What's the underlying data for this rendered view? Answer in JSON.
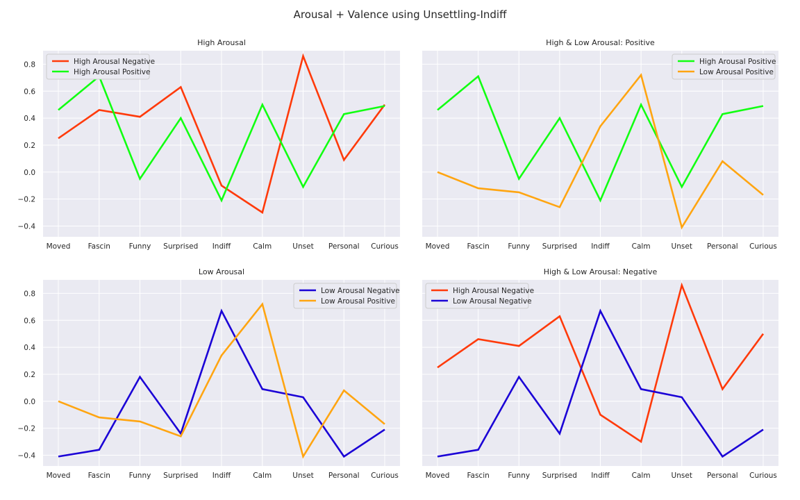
{
  "figure": {
    "suptitle": "Arousal + Valence using Unsettling-Indiff"
  },
  "colors": {
    "high_arousal_negative": "#ff3a0a",
    "high_arousal_positive": "#11ff11",
    "low_arousal_negative": "#1a00d6",
    "low_arousal_positive": "#ffa511",
    "plot_background": "#eaeaf2",
    "grid": "#ffffff"
  },
  "chart_data": [
    {
      "type": "line",
      "title": "High Arousal",
      "categories": [
        "Moved",
        "Fascin",
        "Funny",
        "Surprised",
        "Indiff",
        "Calm",
        "Unset",
        "Personal",
        "Curious"
      ],
      "ylim": [
        -0.48,
        0.9
      ],
      "yticks": [
        "0.8",
        "0.6",
        "0.4",
        "0.2",
        "0.0",
        "−0.2",
        "−0.4"
      ],
      "ytick_values": [
        0.8,
        0.6,
        0.4,
        0.2,
        0.0,
        -0.2,
        -0.4
      ],
      "show_yticks": true,
      "grid": true,
      "legend": "upper-left",
      "series": [
        {
          "name": "High Arousal Negative",
          "color_key": "high_arousal_negative",
          "values": [
            0.25,
            0.46,
            0.41,
            0.63,
            -0.1,
            -0.3,
            0.86,
            0.09,
            0.5
          ]
        },
        {
          "name": "High Arousal Positive",
          "color_key": "high_arousal_positive",
          "values": [
            0.46,
            0.71,
            -0.05,
            0.4,
            -0.21,
            0.5,
            -0.11,
            0.43,
            0.49
          ]
        }
      ]
    },
    {
      "type": "line",
      "title": "High & Low Arousal: Positive",
      "categories": [
        "Moved",
        "Fascin",
        "Funny",
        "Surprised",
        "Indiff",
        "Calm",
        "Unset",
        "Personal",
        "Curious"
      ],
      "ylim": [
        -0.48,
        0.9
      ],
      "yticks": [],
      "ytick_values": [
        0.8,
        0.6,
        0.4,
        0.2,
        0.0,
        -0.2,
        -0.4
      ],
      "show_yticks": false,
      "grid": true,
      "legend": "upper-right",
      "series": [
        {
          "name": "High Arousal Positive",
          "color_key": "high_arousal_positive",
          "values": [
            0.46,
            0.71,
            -0.05,
            0.4,
            -0.21,
            0.5,
            -0.11,
            0.43,
            0.49
          ]
        },
        {
          "name": "Low Arousal Positive",
          "color_key": "low_arousal_positive",
          "values": [
            0.0,
            -0.12,
            -0.15,
            -0.26,
            0.34,
            0.72,
            -0.41,
            0.08,
            -0.17
          ]
        }
      ]
    },
    {
      "type": "line",
      "title": "Low Arousal",
      "categories": [
        "Moved",
        "Fascin",
        "Funny",
        "Surprised",
        "Indiff",
        "Calm",
        "Unset",
        "Personal",
        "Curious"
      ],
      "ylim": [
        -0.48,
        0.9
      ],
      "yticks": [
        "0.8",
        "0.6",
        "0.4",
        "0.2",
        "0.0",
        "−0.2",
        "−0.4"
      ],
      "ytick_values": [
        0.8,
        0.6,
        0.4,
        0.2,
        0.0,
        -0.2,
        -0.4
      ],
      "show_yticks": true,
      "grid": true,
      "legend": "upper-right",
      "series": [
        {
          "name": "Low Arousal Negative",
          "color_key": "low_arousal_negative",
          "values": [
            -0.41,
            -0.36,
            0.18,
            -0.24,
            0.67,
            0.09,
            0.03,
            -0.41,
            -0.21
          ]
        },
        {
          "name": "Low Arousal Positive",
          "color_key": "low_arousal_positive",
          "values": [
            0.0,
            -0.12,
            -0.15,
            -0.26,
            0.34,
            0.72,
            -0.41,
            0.08,
            -0.17
          ]
        }
      ]
    },
    {
      "type": "line",
      "title": "High & Low Arousal: Negative",
      "categories": [
        "Moved",
        "Fascin",
        "Funny",
        "Surprised",
        "Indiff",
        "Calm",
        "Unset",
        "Personal",
        "Curious"
      ],
      "ylim": [
        -0.48,
        0.9
      ],
      "yticks": [],
      "ytick_values": [
        0.8,
        0.6,
        0.4,
        0.2,
        0.0,
        -0.2,
        -0.4
      ],
      "show_yticks": false,
      "grid": true,
      "legend": "upper-left",
      "series": [
        {
          "name": "High Arousal Negative",
          "color_key": "high_arousal_negative",
          "values": [
            0.25,
            0.46,
            0.41,
            0.63,
            -0.1,
            -0.3,
            0.86,
            0.09,
            0.5
          ]
        },
        {
          "name": "Low Arousal Negative",
          "color_key": "low_arousal_negative",
          "values": [
            -0.41,
            -0.36,
            0.18,
            -0.24,
            0.67,
            0.09,
            0.03,
            -0.41,
            -0.21
          ]
        }
      ]
    }
  ]
}
